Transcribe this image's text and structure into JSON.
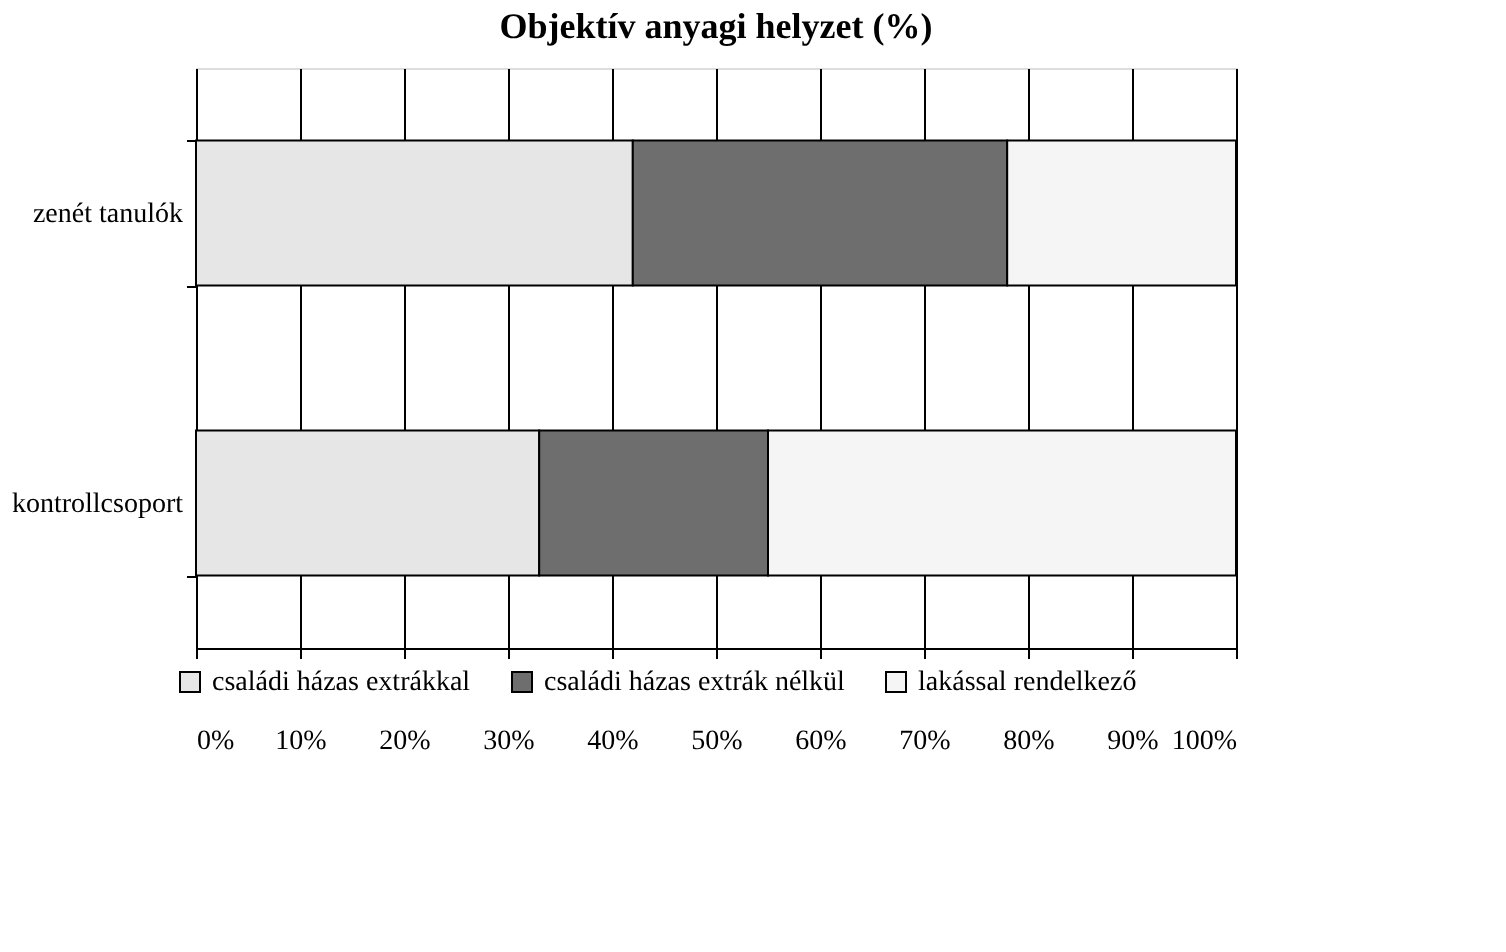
{
  "chart_data": {
    "type": "bar",
    "orientation": "horizontal",
    "stacked": true,
    "title": "Objektív anyagi helyzet (%)",
    "categories": [
      "zenét tanulók",
      "kontrollcsoport"
    ],
    "series": [
      {
        "name": "családi házas extrákkal",
        "color": "#e6e6e6",
        "values": [
          42,
          33
        ]
      },
      {
        "name": "családi házas extrák nélkül",
        "color": "#6e6e6e",
        "values": [
          36,
          22
        ]
      },
      {
        "name": "lakással rendelkező",
        "color": "#f5f5f5",
        "values": [
          22,
          45
        ]
      }
    ],
    "xlim": [
      0,
      100
    ],
    "xticks": [
      {
        "value": 0,
        "label": "0%"
      },
      {
        "value": 10,
        "label": "10%"
      },
      {
        "value": 20,
        "label": "20%"
      },
      {
        "value": 30,
        "label": "30%"
      },
      {
        "value": 40,
        "label": "40%"
      },
      {
        "value": 50,
        "label": "50%"
      },
      {
        "value": 60,
        "label": "60%"
      },
      {
        "value": 70,
        "label": "70%"
      },
      {
        "value": 80,
        "label": "80%"
      },
      {
        "value": 90,
        "label": "90%"
      },
      {
        "value": 100,
        "label": "100%"
      }
    ],
    "grid": "x",
    "legend": "bottom"
  }
}
